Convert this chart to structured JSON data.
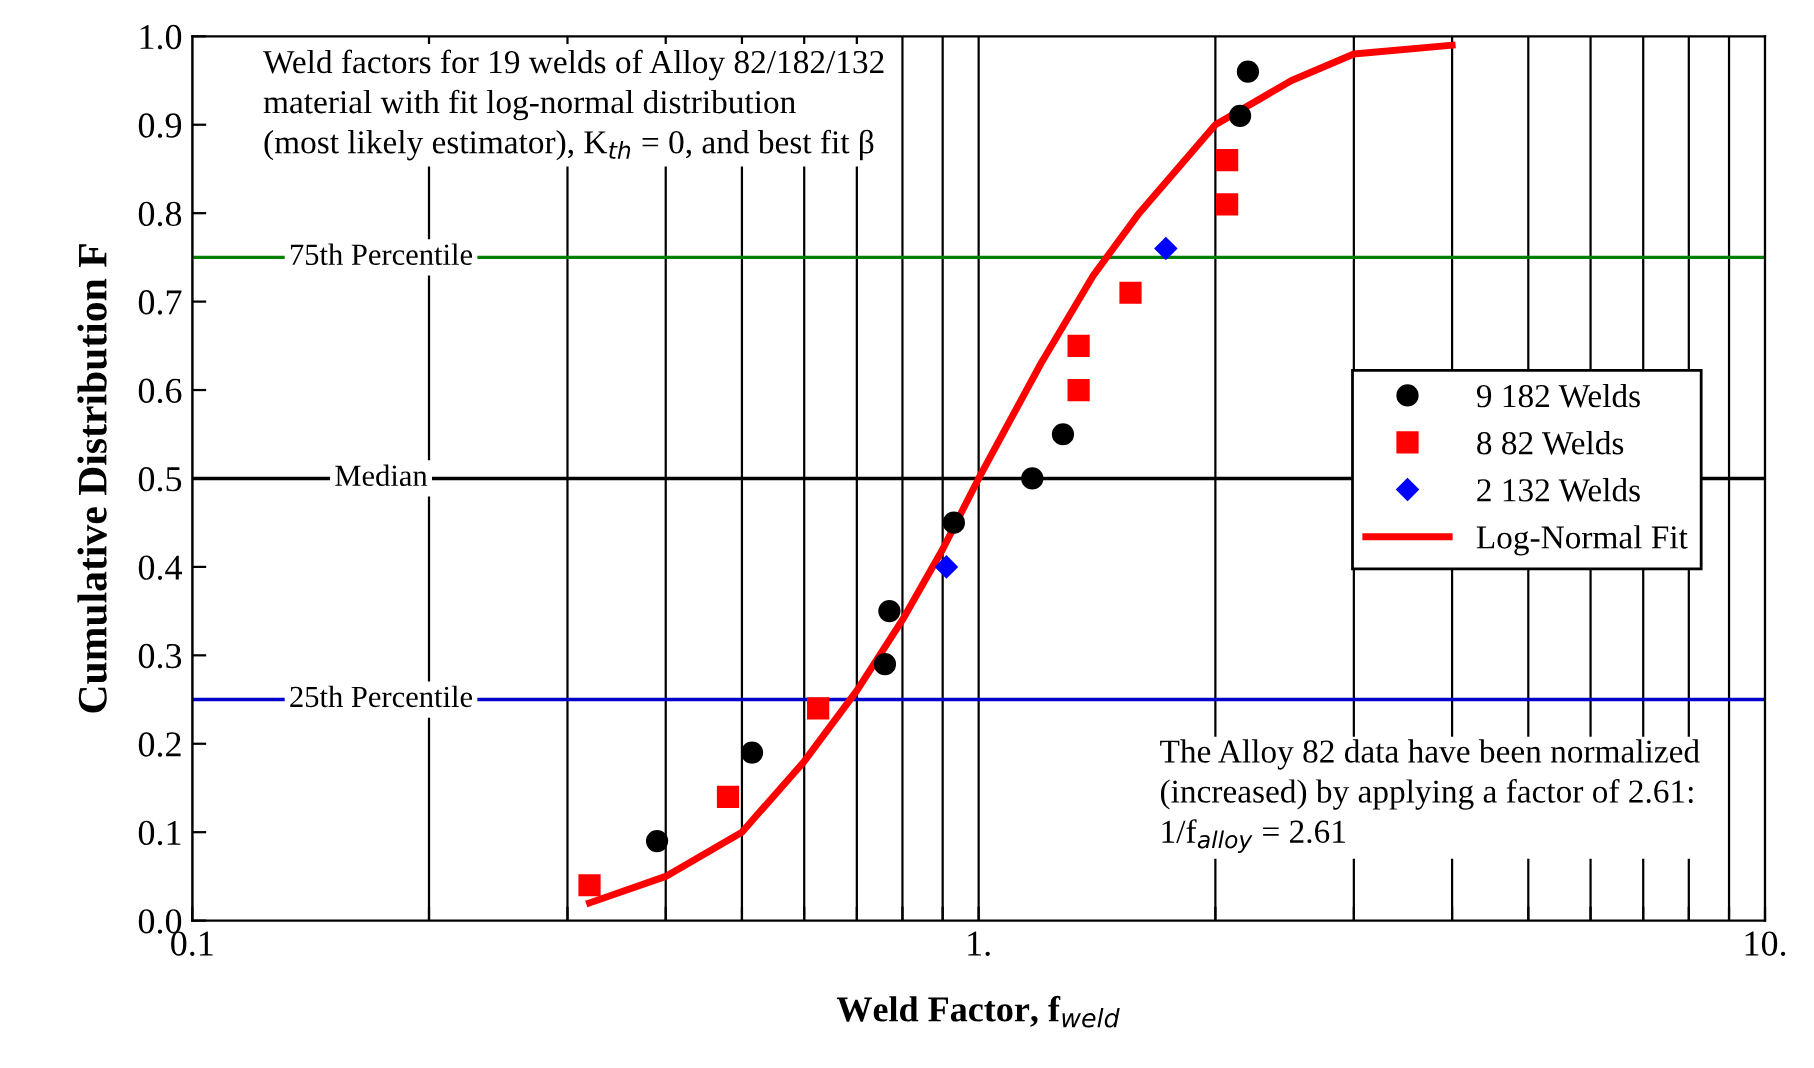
{
  "chart_data": {
    "type": "scatter",
    "xlabel": "Weld Factor, f$_{weld}$",
    "ylabel": "Cumulative Distribution F",
    "log": "x",
    "xlim": [
      0.1,
      10
    ],
    "ylim": [
      0,
      1
    ],
    "xticks": [
      0.1,
      {
        "value": 0.2,
        "label": null
      },
      {
        "value": 0.3,
        "label": null
      },
      {
        "value": 0.4,
        "label": null
      },
      {
        "value": 0.5,
        "label": null
      },
      {
        "value": 0.6,
        "label": null
      },
      {
        "value": 0.7,
        "label": null
      },
      {
        "value": 0.8,
        "label": null
      },
      {
        "value": 0.9,
        "label": null
      },
      {
        "value": 1,
        "label": "1."
      },
      {
        "value": 2,
        "label": null
      },
      {
        "value": 3,
        "label": null
      },
      {
        "value": 4,
        "label": null
      },
      {
        "value": 5,
        "label": null
      },
      {
        "value": 6,
        "label": null
      },
      {
        "value": 7,
        "label": null
      },
      {
        "value": 8,
        "label": null
      },
      {
        "value": 9,
        "label": null
      },
      {
        "value": 10,
        "label": "10."
      }
    ],
    "yticks": [
      {
        "value": 0,
        "label": "0.0"
      },
      0.1,
      0.2,
      0.3,
      0.4,
      0.5,
      0.6,
      0.7,
      0.8,
      0.9,
      {
        "value": 1,
        "label": "1.0"
      }
    ],
    "grid": "x",
    "legend": "right",
    "series": [
      {
        "name": "9 182 Welds",
        "color": "#000000",
        "marker": "circle",
        "x": [
          0.39,
          0.515,
          0.76,
          0.77,
          0.93,
          1.17,
          1.28,
          2.15,
          2.2
        ],
        "values": [
          0.09,
          0.19,
          0.29,
          0.35,
          0.45,
          0.5,
          0.55,
          0.91,
          0.96
        ]
      },
      {
        "name": "8 82 Welds",
        "color": "#ff0000",
        "marker": "square",
        "x": [
          0.32,
          0.48,
          0.625,
          1.34,
          1.34,
          1.56,
          2.07,
          2.07
        ],
        "values": [
          0.04,
          0.14,
          0.24,
          0.6,
          0.65,
          0.71,
          0.81,
          0.86
        ]
      },
      {
        "name": "2 132 Welds",
        "color": "#0000ff",
        "marker": "diamond",
        "x": [
          0.91,
          1.73
        ],
        "values": [
          0.4,
          0.76
        ]
      },
      {
        "name": "Log-Normal Fit",
        "type": "line",
        "color": "#ff0000",
        "marker": "none",
        "line_style": "solid",
        "x": [
          0.32,
          0.4,
          0.5,
          0.6,
          0.7,
          0.8,
          0.9,
          1,
          1.2,
          1.4,
          1.6,
          2,
          2.5,
          3,
          4
        ],
        "values": [
          0.02,
          0.05,
          0.1,
          0.18,
          0.26,
          0.34,
          0.42,
          0.5,
          0.63,
          0.73,
          0.8,
          0.9,
          0.95,
          0.98,
          0.99
        ]
      }
    ],
    "ref_lines": [
      {
        "axis": "y",
        "value": 0.75,
        "label": "75th Percentile",
        "color": "#008000"
      },
      {
        "axis": "y",
        "value": 0.5,
        "label": "Median",
        "color": "#000000"
      },
      {
        "axis": "y",
        "value": 0.25,
        "label": "25th Percentile",
        "color": "#0000cc"
      }
    ],
    "annotations": [
      "Weld factors for 19 welds of Alloy 82/182/132\nmaterial with fit log-normal distribution\n(most likely estimator), K$_{th}$ = 0, and best fit β",
      "The Alloy 82 data have been normalized\n(increased) by applying a factor of 2.61:\n1/f$_{alloy}$ = 2.61"
    ]
  }
}
